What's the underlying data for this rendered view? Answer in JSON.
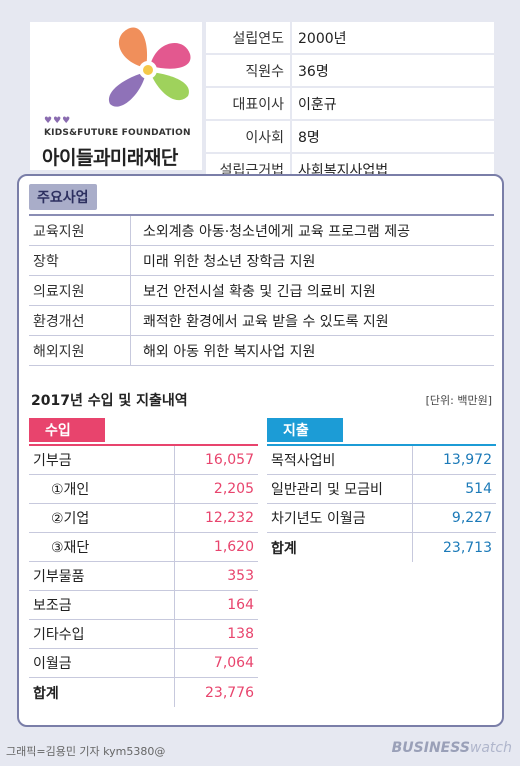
{
  "foundation": {
    "hearts": "♥♥♥",
    "name_en": "KIDS&FUTURE FOUNDATION",
    "name_ko": "아이들과미래재단",
    "info": [
      {
        "key": "설립연도",
        "value": "2000년"
      },
      {
        "key": "직원수",
        "value": "36명"
      },
      {
        "key": "대표이사",
        "value": "이훈규"
      },
      {
        "key": "이사회",
        "value": "8명"
      },
      {
        "key": "설립근거법",
        "value": "사회복지사업법"
      }
    ]
  },
  "business": {
    "title": "주요사업",
    "rows": [
      {
        "name": "교육지원",
        "desc": "소외계층 아동·청소년에게 교육 프로그램 제공"
      },
      {
        "name": "장학",
        "desc": "미래 위한 청소년 장학금 지원"
      },
      {
        "name": "의료지원",
        "desc": "보건 안전시설 확충 및 긴급 의료비 지원"
      },
      {
        "name": "환경개선",
        "desc": "쾌적한 환경에서 교육 받을 수 있도록 지원"
      },
      {
        "name": "해외지원",
        "desc": "해외 아동 위한 복지사업 지원"
      }
    ]
  },
  "finance": {
    "title": "2017년 수입 및 지출내역",
    "unit": "[단위: 백만원]",
    "income": {
      "label": "수입",
      "rows": [
        {
          "name": "기부금",
          "value": "16,057"
        },
        {
          "name": "①개인",
          "value": "2,205"
        },
        {
          "name": "②기업",
          "value": "12,232"
        },
        {
          "name": "③재단",
          "value": "1,620"
        },
        {
          "name": "기부물품",
          "value": "353"
        },
        {
          "name": "보조금",
          "value": "164"
        },
        {
          "name": "기타수입",
          "value": "138"
        },
        {
          "name": "이월금",
          "value": "7,064"
        },
        {
          "name": "합계",
          "value": "23,776"
        }
      ]
    },
    "expense": {
      "label": "지출",
      "rows": [
        {
          "name": "목적사업비",
          "value": "13,972"
        },
        {
          "name": "일반관리 및 모금비",
          "value": "514"
        },
        {
          "name": "차기년도 이월금",
          "value": "9,227"
        },
        {
          "name": "합계",
          "value": "23,713"
        }
      ]
    }
  },
  "footer": {
    "credit": "그래픽=김용민 기자 kym5380@",
    "brand_a": "BUSINESS",
    "brand_b": "watch"
  },
  "colors": {
    "income": "#e8446d",
    "expense": "#1c9cd6",
    "panel_border": "#7a7ea8",
    "background": "#e6e8f1"
  }
}
